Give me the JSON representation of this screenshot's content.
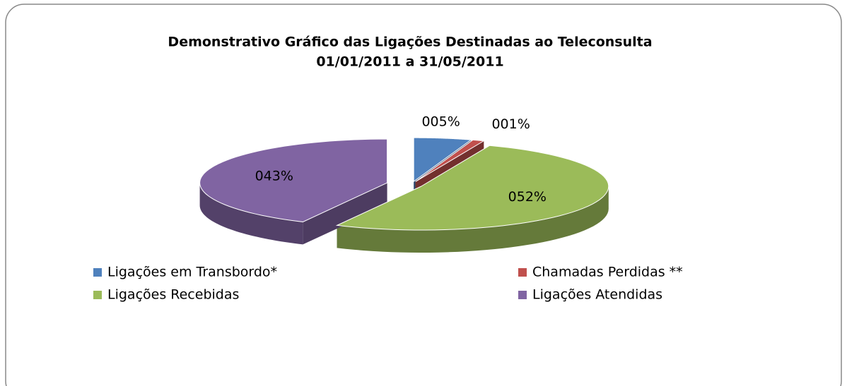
{
  "chart_data": {
    "type": "pie",
    "title": [
      "Demonstrativo Gráfico das Ligações Destinadas ao Teleconsulta",
      "01/01/2011  a  31/05/2011"
    ],
    "categories": [
      "Ligações em Transbordo*",
      "Chamadas Perdidas **",
      "Ligações Recebidas",
      "Ligações Atendidas"
    ],
    "values": [
      5,
      1,
      52,
      43
    ],
    "value_labels": [
      "005%",
      "001%",
      "052%",
      "043%"
    ],
    "colors": [
      "#4f81bd",
      "#c0504d",
      "#9bbb59",
      "#8064a2"
    ],
    "legend": "bottom"
  }
}
